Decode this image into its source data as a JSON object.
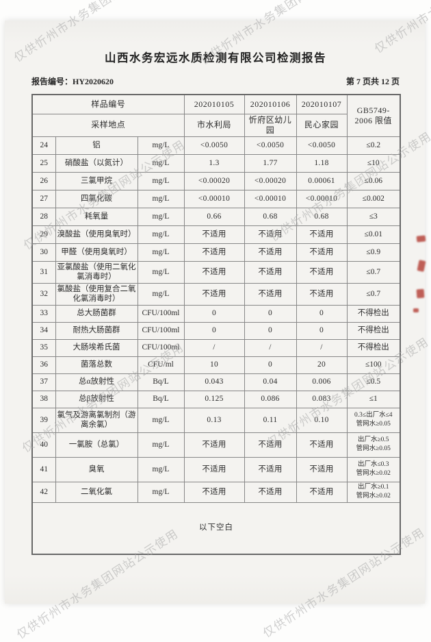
{
  "watermark": {
    "text": "仅供忻州市水务集团网站公示使用"
  },
  "header": {
    "title": "山西水务宏远水质检测有限公司检测报告",
    "report_no": "报告编号：HY2020620",
    "page_info": "第 7 页共 12 页"
  },
  "table": {
    "sample_id_label": "样品编号",
    "location_label": "采样地点",
    "sample_ids": [
      "202010105",
      "202010106",
      "202010107"
    ],
    "locations": [
      "市水利局",
      "忻府区幼儿园",
      "民心家园"
    ],
    "limit_header_line1": "GB5749-",
    "limit_header_line2": "2006 限值",
    "rows": [
      {
        "no": "24",
        "item": "铝",
        "unit": "mg/L",
        "values": [
          "<0.0050",
          "<0.0050",
          "<0.0050"
        ],
        "limit": [
          "≤0.2"
        ]
      },
      {
        "no": "25",
        "item": "硝酸盐（以氮计）",
        "unit": "mg/L",
        "values": [
          "1.3",
          "1.77",
          "1.18"
        ],
        "limit": [
          "≤10"
        ]
      },
      {
        "no": "26",
        "item": "三氯甲烷",
        "unit": "mg/L",
        "values": [
          "<0.00020",
          "<0.00020",
          "0.00061"
        ],
        "limit": [
          "≤0.06"
        ]
      },
      {
        "no": "27",
        "item": "四氯化碳",
        "unit": "mg/L",
        "values": [
          "<0.00010",
          "<0.00010",
          "<0.00010"
        ],
        "limit": [
          "≤0.002"
        ]
      },
      {
        "no": "28",
        "item": "耗氧量",
        "unit": "mg/L",
        "values": [
          "0.66",
          "0.68",
          "0.68"
        ],
        "limit": [
          "≤3"
        ]
      },
      {
        "no": "29",
        "item": "溴酸盐（使用臭氧时）",
        "unit": "mg/L",
        "values": [
          "不适用",
          "不适用",
          "不适用"
        ],
        "limit": [
          "≤0.01"
        ]
      },
      {
        "no": "30",
        "item": "甲醛（使用臭氧时）",
        "unit": "mg/L",
        "values": [
          "不适用",
          "不适用",
          "不适用"
        ],
        "limit": [
          "≤0.9"
        ]
      },
      {
        "no": "31",
        "item": "亚氯酸盐（使用二氧化氯消毒时）",
        "unit": "mg/L",
        "values": [
          "不适用",
          "不适用",
          "不适用"
        ],
        "limit": [
          "≤0.7"
        ]
      },
      {
        "no": "32",
        "item": "氯酸盐（使用复合二氧化氯消毒时）",
        "unit": "mg/L",
        "values": [
          "不适用",
          "不适用",
          "不适用"
        ],
        "limit": [
          "≤0.7"
        ]
      },
      {
        "no": "33",
        "item": "总大肠菌群",
        "unit": "CFU/100ml",
        "values": [
          "0",
          "0",
          "0"
        ],
        "limit": [
          "不得检出"
        ]
      },
      {
        "no": "34",
        "item": "耐热大肠菌群",
        "unit": "CFU/100ml",
        "values": [
          "0",
          "0",
          "0"
        ],
        "limit": [
          "不得检出"
        ]
      },
      {
        "no": "35",
        "item": "大肠埃希氏菌",
        "unit": "CFU/100ml",
        "values": [
          "/",
          "/",
          "/"
        ],
        "limit": [
          "不得检出"
        ]
      },
      {
        "no": "36",
        "item": "菌落总数",
        "unit": "CFU/ml",
        "values": [
          "10",
          "0",
          "20"
        ],
        "limit": [
          "≤100"
        ]
      },
      {
        "no": "37",
        "item": "总α放射性",
        "unit": "Bq/L",
        "values": [
          "0.043",
          "0.04",
          "0.006"
        ],
        "limit": [
          "≤0.5"
        ]
      },
      {
        "no": "38",
        "item": "总β放射性",
        "unit": "Bq/L",
        "values": [
          "0.125",
          "0.086",
          "0.083"
        ],
        "limit": [
          "≤1"
        ]
      },
      {
        "no": "39",
        "item": "氯气及游离氯制剂（游离余氯）",
        "unit": "mg/L",
        "values": [
          "0.13",
          "0.11",
          "0.10"
        ],
        "limit": [
          "0.3≤出厂水≤4",
          "管网水≥0.05"
        ]
      },
      {
        "no": "40",
        "item": "一氯胺（总氯）",
        "unit": "mg/L",
        "values": [
          "不适用",
          "不适用",
          "不适用"
        ],
        "limit": [
          "出厂水≥0.5",
          "管网水≥0.05"
        ]
      },
      {
        "no": "41",
        "item": "臭氧",
        "unit": "mg/L",
        "values": [
          "不适用",
          "不适用",
          "不适用"
        ],
        "limit": [
          "出厂水≤0.3",
          "管网水≥0.02"
        ]
      },
      {
        "no": "42",
        "item": "二氧化氯",
        "unit": "mg/L",
        "values": [
          "不适用",
          "不适用",
          "不适用"
        ],
        "limit": [
          "出厂水≥0.1",
          "管网水≥0.02"
        ]
      }
    ],
    "footer_note": "以下空白"
  },
  "seal": {
    "name": "red-stamp-fragment",
    "color": "#b23b32"
  }
}
